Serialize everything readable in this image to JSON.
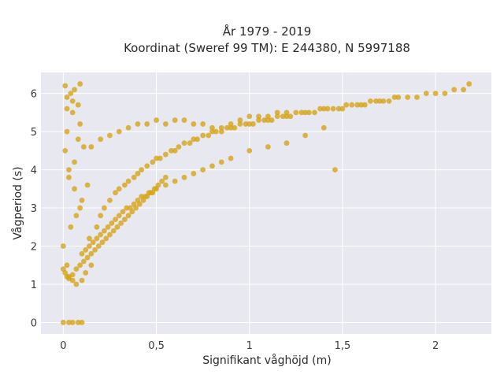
{
  "chart_data": {
    "type": "scatter",
    "title_line1": "År 1979 - 2019",
    "title_line2": "Koordinat (Sweref 99 TM): E 244380, N 5997188",
    "xlabel": "Signifikant våghöjd (m)",
    "ylabel": "Vågperiod (s)",
    "xlim": [
      -0.12,
      2.3
    ],
    "ylim": [
      -0.3,
      6.55
    ],
    "xticks": [
      {
        "value": 0,
        "label": "0"
      },
      {
        "value": 0.5,
        "label": "0,5"
      },
      {
        "value": 1,
        "label": "1"
      },
      {
        "value": 1.5,
        "label": "1,5"
      },
      {
        "value": 2,
        "label": "2"
      }
    ],
    "yticks": [
      {
        "value": 0,
        "label": "0"
      },
      {
        "value": 1,
        "label": "1"
      },
      {
        "value": 2,
        "label": "2"
      },
      {
        "value": 3,
        "label": "3"
      },
      {
        "value": 4,
        "label": "4"
      },
      {
        "value": 5,
        "label": "5"
      },
      {
        "value": 6,
        "label": "6"
      }
    ],
    "grid": true,
    "legend": "none",
    "colors": {
      "marker": "#d4a418",
      "plot_bg": "#e8e8f0",
      "grid": "#ffffff"
    },
    "x": [
      0,
      0.03,
      0.05,
      0.08,
      0.1,
      0.01,
      0.02,
      0.04,
      0.06,
      0.09,
      0.0,
      0.02,
      0.03,
      0.05,
      0.07,
      0.1,
      0.12,
      0.15,
      0.01,
      0.03,
      0.06,
      0.09,
      0.02,
      0.05,
      0.08,
      0.11,
      0.04,
      0.07,
      0.1,
      0.13,
      0.03,
      0.06,
      0.09,
      0.02,
      0.05,
      0.08,
      0.14,
      0.18,
      0.2,
      0.22,
      0.25,
      0.28,
      0.3,
      0.33,
      0.35,
      0.38,
      0.4,
      0.42,
      0.45,
      0.48,
      0.5,
      0.52,
      0.55,
      0.58,
      0.6,
      0.62,
      0.65,
      0.68,
      0.7,
      0.72,
      0.75,
      0.78,
      0.8,
      0.82,
      0.85,
      0.88,
      0.9,
      0.92,
      0.95,
      0.98,
      1.0,
      1.02,
      1.05,
      1.08,
      1.1,
      1.12,
      1.15,
      1.18,
      1.2,
      1.22,
      1.25,
      1.28,
      1.3,
      1.32,
      1.35,
      1.38,
      1.4,
      1.42,
      1.45,
      1.48,
      1.5,
      1.52,
      1.55,
      1.58,
      1.6,
      1.62,
      1.65,
      1.68,
      1.7,
      1.72,
      1.75,
      1.78,
      1.8,
      1.85,
      1.9,
      1.95,
      2.0,
      2.05,
      2.1,
      2.15,
      2.18,
      0.15,
      0.2,
      0.25,
      0.3,
      0.35,
      0.4,
      0.45,
      0.5,
      0.55,
      0.6,
      0.65,
      0.7,
      0.75,
      0.8,
      0.85,
      0.9,
      0.95,
      1.0,
      1.05,
      1.1,
      1.15,
      1.2,
      0.1,
      0.12,
      0.14,
      0.16,
      0.18,
      0.2,
      0.22,
      0.24,
      0.26,
      0.28,
      0.3,
      0.32,
      0.34,
      0.36,
      0.38,
      0.4,
      0.42,
      0.44,
      0.46,
      0.48,
      0.5,
      0.55,
      0.6,
      0.65,
      0.7,
      0.75,
      0.8,
      0.85,
      0.9,
      1.0,
      1.1,
      1.2,
      1.3,
      1.4,
      1.46,
      0.0,
      0.01,
      0.02,
      0.03,
      0.05,
      0.07,
      0.09,
      0.11,
      0.13,
      0.15,
      0.17,
      0.19,
      0.21,
      0.23,
      0.25,
      0.27,
      0.29,
      0.31,
      0.33,
      0.35,
      0.37,
      0.39,
      0.41,
      0.43,
      0.45,
      0.47,
      0.49,
      0.51,
      0.53,
      0.55
    ],
    "y": [
      0,
      0,
      0,
      0,
      0,
      6.2,
      5.9,
      6.0,
      6.1,
      6.25,
      2.0,
      1.5,
      1.2,
      1.1,
      1.0,
      1.1,
      1.3,
      1.5,
      4.5,
      4.0,
      3.5,
      3.0,
      5.0,
      5.5,
      4.8,
      4.6,
      2.5,
      2.8,
      3.2,
      3.6,
      3.8,
      4.2,
      5.2,
      5.6,
      5.8,
      5.7,
      2.2,
      2.5,
      2.8,
      3.0,
      3.2,
      3.4,
      3.5,
      3.6,
      3.7,
      3.8,
      3.9,
      4.0,
      4.1,
      4.2,
      4.3,
      4.3,
      4.4,
      4.5,
      4.5,
      4.6,
      4.7,
      4.7,
      4.8,
      4.8,
      4.9,
      4.9,
      5.0,
      5.0,
      5.0,
      5.1,
      5.1,
      5.1,
      5.2,
      5.2,
      5.2,
      5.2,
      5.3,
      5.3,
      5.3,
      5.3,
      5.4,
      5.4,
      5.4,
      5.4,
      5.5,
      5.5,
      5.5,
      5.5,
      5.5,
      5.6,
      5.6,
      5.6,
      5.6,
      5.6,
      5.6,
      5.7,
      5.7,
      5.7,
      5.7,
      5.7,
      5.8,
      5.8,
      5.8,
      5.8,
      5.8,
      5.9,
      5.9,
      5.9,
      5.9,
      6.0,
      6.0,
      6.0,
      6.1,
      6.1,
      6.25,
      4.6,
      4.8,
      4.9,
      5.0,
      5.1,
      5.2,
      5.2,
      5.3,
      5.2,
      5.3,
      5.3,
      5.2,
      5.2,
      5.1,
      5.1,
      5.2,
      5.3,
      5.4,
      5.4,
      5.4,
      5.5,
      5.5,
      1.8,
      1.9,
      2.0,
      2.1,
      2.2,
      2.3,
      2.4,
      2.5,
      2.6,
      2.7,
      2.8,
      2.9,
      3.0,
      3.0,
      3.1,
      3.2,
      3.3,
      3.3,
      3.4,
      3.4,
      3.5,
      3.6,
      3.7,
      3.8,
      3.9,
      4.0,
      4.1,
      4.2,
      4.3,
      4.5,
      4.6,
      4.7,
      4.9,
      5.1,
      4.0,
      1.4,
      1.3,
      1.2,
      1.15,
      1.25,
      1.4,
      1.5,
      1.6,
      1.7,
      1.8,
      1.9,
      2.0,
      2.1,
      2.2,
      2.3,
      2.4,
      2.5,
      2.6,
      2.7,
      2.8,
      2.9,
      3.0,
      3.1,
      3.2,
      3.3,
      3.4,
      3.5,
      3.6,
      3.7,
      3.8
    ]
  }
}
